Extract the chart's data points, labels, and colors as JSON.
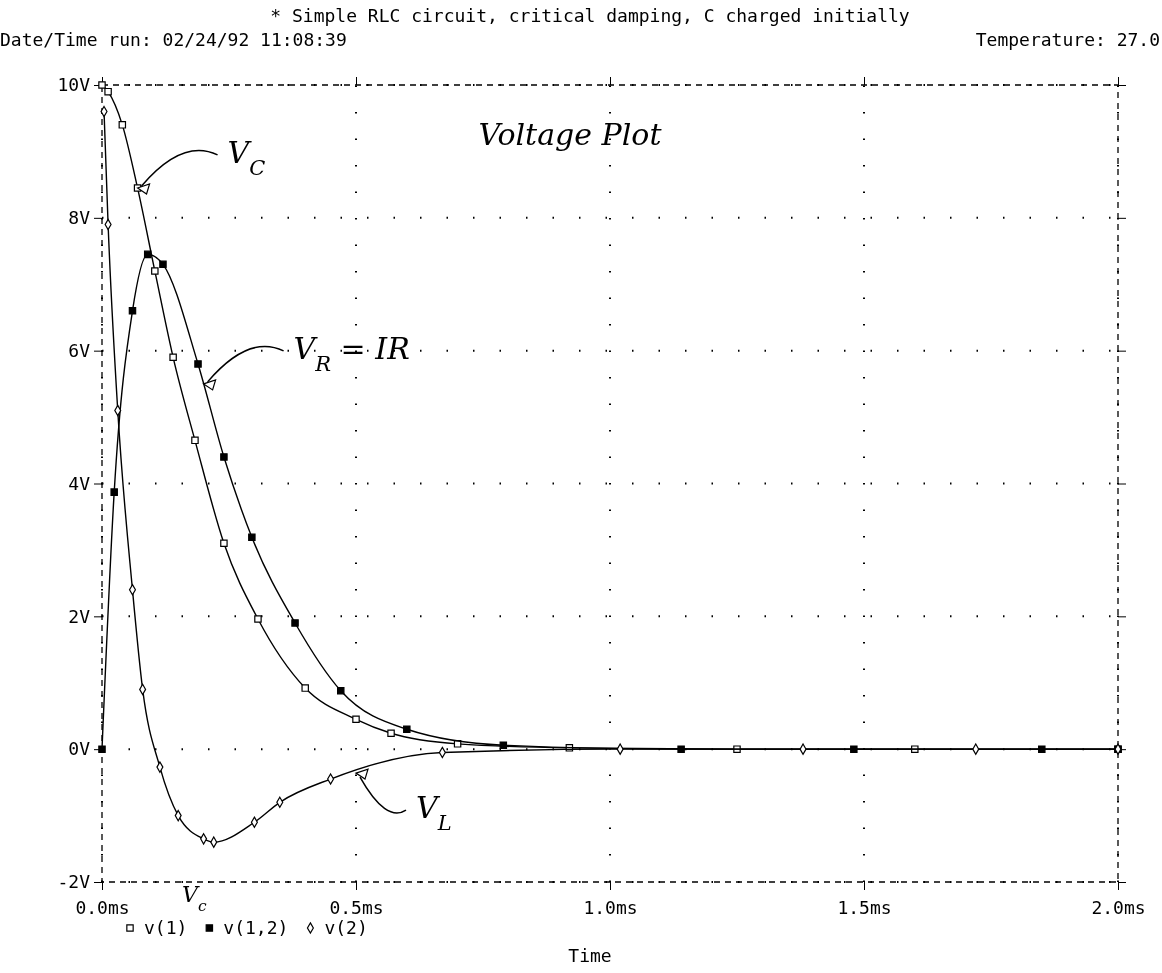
{
  "chart_data": {
    "type": "line",
    "title": "* Simple RLC circuit, critical damping, C charged initially",
    "xlabel": "Time",
    "series": [
      {
        "name": "v(1)",
        "color": "#000000",
        "marker": "square",
        "x": [
          0,
          0.012,
          0.04,
          0.07,
          0.104,
          0.14,
          0.183,
          0.24,
          0.307,
          0.4,
          0.5,
          0.569,
          0.7,
          0.92,
          1.25,
          1.6,
          2.0
        ],
        "values": [
          10,
          9.9,
          9.4,
          8.45,
          7.2,
          5.9,
          4.65,
          3.1,
          1.96,
          0.92,
          0.45,
          0.24,
          0.08,
          0.02,
          0,
          0,
          0
        ]
      },
      {
        "name": "v(1,2)",
        "color": "#000000",
        "marker": "square",
        "x": [
          0,
          0.024,
          0.06,
          0.09,
          0.12,
          0.189,
          0.24,
          0.295,
          0.38,
          0.47,
          0.6,
          0.79,
          1.14,
          1.48,
          1.85,
          2.0
        ],
        "values": [
          0,
          3.87,
          6.6,
          7.45,
          7.3,
          5.8,
          4.4,
          3.19,
          1.9,
          0.88,
          0.3,
          0.06,
          0,
          0,
          0,
          0
        ]
      },
      {
        "name": "v(2)",
        "color": "#000000",
        "marker": "diamond",
        "x": [
          0.004,
          0.012,
          0.031,
          0.06,
          0.08,
          0.114,
          0.15,
          0.2,
          0.22,
          0.3,
          0.35,
          0.45,
          0.67,
          1.02,
          1.38,
          1.72,
          2.0
        ],
        "values": [
          9.6,
          7.9,
          5.1,
          2.4,
          0.9,
          -0.27,
          -1.0,
          -1.35,
          -1.4,
          -1.1,
          -0.8,
          -0.45,
          -0.05,
          0,
          0,
          0,
          0
        ]
      }
    ],
    "xlim": [
      0,
      2.0
    ],
    "ylim": [
      -2,
      10
    ],
    "xticks": [
      {
        "value": 0,
        "label": "0.0ms"
      },
      {
        "value": 0.5,
        "label": "0.5ms"
      },
      {
        "value": 1.0,
        "label": "1.0ms"
      },
      {
        "value": 1.5,
        "label": "1.5ms"
      },
      {
        "value": 2.0,
        "label": "2.0ms"
      }
    ],
    "yticks": [
      {
        "value": -2,
        "label": "-2V"
      },
      {
        "value": 0,
        "label": "0V"
      },
      {
        "value": 2,
        "label": "2V"
      },
      {
        "value": 4,
        "label": "4V"
      },
      {
        "value": 6,
        "label": "6V"
      },
      {
        "value": 8,
        "label": "8V"
      },
      {
        "value": 10,
        "label": "10V"
      }
    ],
    "grid": true,
    "legend": "bottom left",
    "line_style": "solid",
    "annotations": [
      "Date/Time run: 02/24/92  11:08:39",
      "Temperature:  27.0",
      "Voltage Plot",
      "V$_{c}$",
      {
        "text": "V$_{C}$",
        "x": 0.07,
        "y": 8.45
      },
      {
        "text": "V$_{R}$ = IR",
        "x": 0.2,
        "y": 5.5
      },
      {
        "text": "V$_{L}$",
        "x": 0.5,
        "y": -0.36
      }
    ]
  }
}
